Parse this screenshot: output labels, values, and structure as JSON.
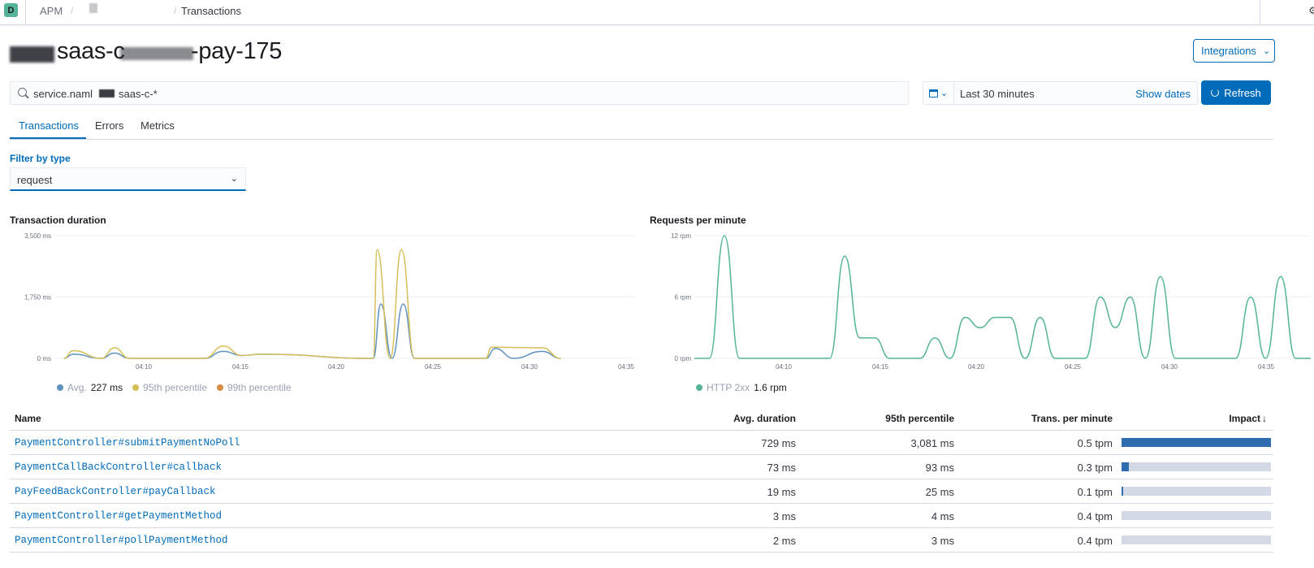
{
  "breadcrumbs": {
    "badge": "D",
    "apm": "APM",
    "current": "Transactions"
  },
  "title": {
    "text": "saas-c",
    "text2": "-pay-175"
  },
  "header": {
    "integrations": "Integrations"
  },
  "search": {
    "query_part1": "service.naml",
    "query_part2": "saas-c-*"
  },
  "datepicker": {
    "range": "Last 30 minutes",
    "show_dates": "Show dates",
    "refresh": "Refresh"
  },
  "tabs": [
    "Transactions",
    "Errors",
    "Metrics"
  ],
  "filter": {
    "label": "Filter by type",
    "value": "request"
  },
  "duration_chart_title": "Transaction duration",
  "rpm_chart_title": "Requests per minute",
  "legends": {
    "avg_label": "Avg.",
    "avg_value": "227 ms",
    "p95_label": "95th percentile",
    "p99_label": "99th percentile",
    "http_label": "HTTP 2xx",
    "http_value": "1.6 rpm"
  },
  "colors": {
    "accent": "#006bb8",
    "avg": "#6092c0",
    "p95": "#d6bf57",
    "p99": "#da8b45",
    "http2xx": "#54b399"
  },
  "chart_data": [
    {
      "type": "line",
      "title": "Transaction duration",
      "y_ticks": [
        "3,500 ms",
        "1,750 ms",
        "0 ms"
      ],
      "x_ticks": [
        "04:10",
        "04:15",
        "04:20",
        "04:25",
        "04:30",
        "04:35"
      ],
      "ylim": [
        0,
        3500
      ],
      "series": [
        {
          "name": "Avg.",
          "points": [
            [
              0.5,
              0
            ],
            [
              1.0,
              120
            ],
            [
              2.5,
              0
            ],
            [
              3.2,
              150
            ],
            [
              4.0,
              0
            ],
            [
              8.0,
              0
            ],
            [
              9.0,
              200
            ],
            [
              10.0,
              80
            ],
            [
              11.0,
              120
            ],
            [
              17.0,
              0
            ],
            [
              17.4,
              1550
            ],
            [
              18.0,
              0
            ],
            [
              18.6,
              1550
            ],
            [
              19.2,
              0
            ],
            [
              23.0,
              0
            ],
            [
              23.5,
              280
            ],
            [
              24.5,
              0
            ],
            [
              26.0,
              200
            ],
            [
              27.0,
              0
            ]
          ]
        },
        {
          "name": "95th percentile",
          "points": [
            [
              0.5,
              0
            ],
            [
              1.0,
              220
            ],
            [
              2.5,
              0
            ],
            [
              3.2,
              300
            ],
            [
              4.0,
              0
            ],
            [
              8.0,
              0
            ],
            [
              9.0,
              350
            ],
            [
              10.0,
              80
            ],
            [
              11.0,
              120
            ],
            [
              17.0,
              0
            ],
            [
              17.2,
              3100
            ],
            [
              17.9,
              0
            ],
            [
              18.5,
              3100
            ],
            [
              19.2,
              0
            ],
            [
              23.0,
              0
            ],
            [
              23.3,
              320
            ],
            [
              24.5,
              310
            ],
            [
              26.0,
              300
            ],
            [
              27.0,
              0
            ]
          ]
        },
        {
          "name": "99th percentile",
          "points": []
        }
      ]
    },
    {
      "type": "line",
      "title": "Requests per minute",
      "y_ticks": [
        "12 rpm",
        "6 rpm",
        "0 rpm"
      ],
      "x_ticks": [
        "04:10",
        "04:15",
        "04:20",
        "04:25",
        "04:30",
        "04:35"
      ],
      "ylim": [
        0,
        12
      ],
      "series": [
        {
          "name": "HTTP 2xx",
          "points": [
            [
              0,
              0
            ],
            [
              1,
              0
            ],
            [
              2,
              12
            ],
            [
              3,
              0
            ],
            [
              9,
              0
            ],
            [
              10,
              10
            ],
            [
              11,
              2
            ],
            [
              12,
              2
            ],
            [
              13,
              0
            ],
            [
              15,
              0
            ],
            [
              16,
              2
            ],
            [
              17,
              0
            ],
            [
              18,
              4
            ],
            [
              19,
              3
            ],
            [
              20,
              4
            ],
            [
              21,
              4
            ],
            [
              22,
              0
            ],
            [
              23,
              4
            ],
            [
              24,
              0
            ],
            [
              26,
              0
            ],
            [
              27,
              6
            ],
            [
              28,
              3
            ],
            [
              29,
              6
            ],
            [
              30,
              0
            ],
            [
              31,
              8
            ],
            [
              32,
              0
            ],
            [
              36,
              0
            ],
            [
              37,
              6
            ],
            [
              38,
              0
            ],
            [
              39,
              8
            ],
            [
              40,
              0
            ],
            [
              41,
              0
            ]
          ]
        }
      ]
    }
  ],
  "table": {
    "headers": {
      "name": "Name",
      "avg": "Avg. duration",
      "p95": "95th percentile",
      "tpm": "Trans. per minute",
      "impact": "Impact"
    },
    "rows": [
      {
        "name": "PaymentController#submitPaymentNoPoll",
        "avg": "729 ms",
        "p95": "3,081 ms",
        "tpm": "0.5 tpm",
        "impact": 1.0
      },
      {
        "name": "PaymentCallBackController#callback",
        "avg": "73 ms",
        "p95": "93 ms",
        "tpm": "0.3 tpm",
        "impact": 0.05
      },
      {
        "name": "PayFeedBackController#payCallback",
        "avg": "19 ms",
        "p95": "25 ms",
        "tpm": "0.1 tpm",
        "impact": 0.005
      },
      {
        "name": "PaymentController#getPaymentMethod",
        "avg": "3 ms",
        "p95": "4 ms",
        "tpm": "0.4 tpm",
        "impact": 0
      },
      {
        "name": "PaymentController#pollPaymentMethod",
        "avg": "2 ms",
        "p95": "3 ms",
        "tpm": "0.4 tpm",
        "impact": 0
      }
    ]
  }
}
